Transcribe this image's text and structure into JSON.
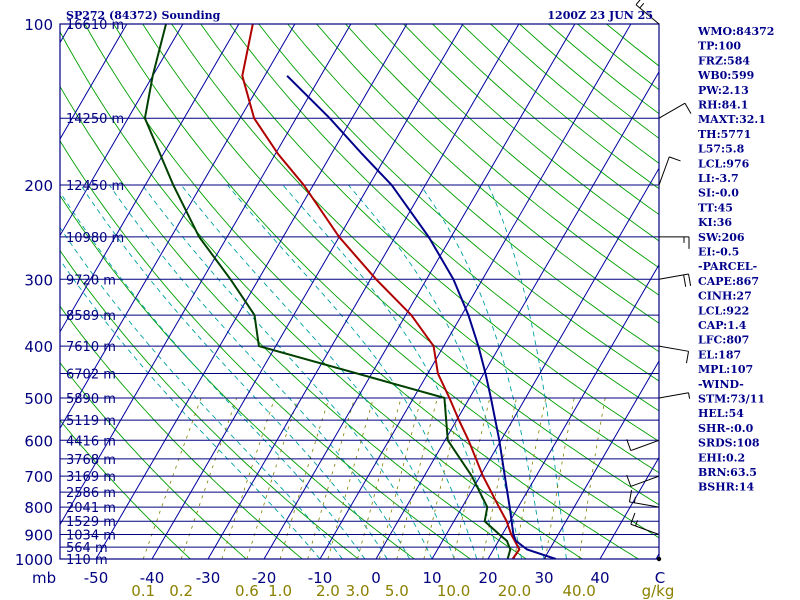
{
  "header": {
    "station": "SP272 (84372) Sounding",
    "time": "1200Z 23 JUN 25"
  },
  "stats": [
    "WMO:84372",
    "TP:100",
    "FRZ:584",
    "WB0:599",
    "PW:2.13",
    "RH:84.1",
    "MAXT:32.1",
    "TH:5771",
    "L57:5.8",
    "LCL:976",
    "LI:-3.7",
    "SI:-0.0",
    "TT:45",
    "KI:36",
    "SW:206",
    "EI:-0.5",
    "-PARCEL-",
    "CAPE:867",
    "CINH:27",
    "LCL:922",
    "CAP:1.4",
    "LFC:807",
    "EL:187",
    "MPL:107",
    "-WIND-",
    "STM:73/11",
    "HEL:54",
    "SHR-:0.0",
    "SRDS:108",
    "EHI:0.2",
    "BRN:63.5",
    "BSHR:14"
  ],
  "chart_data": {
    "type": "line",
    "title": "SP272 (84372) Sounding",
    "subtitle": "1200Z 23 JUN 25",
    "ylabel": "mb",
    "xlabel": "C",
    "mixing_ratio_unit": "g/kg",
    "pressure_ticks": [
      100,
      200,
      300,
      400,
      500,
      600,
      700,
      800,
      900,
      1000
    ],
    "pressure_tick_labels": [
      "100",
      "200",
      "300",
      "400",
      "500",
      "600",
      "700",
      "800",
      "900",
      "1000"
    ],
    "temperature_ticks": [
      -50,
      -40,
      -30,
      -20,
      -10,
      0,
      10,
      20,
      30,
      40
    ],
    "temperature_tick_labels": [
      "-50",
      "-40",
      "-30",
      "-20",
      "-10",
      "0",
      "10",
      "20",
      "30",
      "40"
    ],
    "mixing_ratio_ticks": [
      0.1,
      0.2,
      0.6,
      1.0,
      2.0,
      3.0,
      5.0,
      10.0,
      20.0,
      40.0
    ],
    "mixing_ratio_tick_labels": [
      "0.1",
      "0.2",
      "0.6",
      "1.0",
      "2.0",
      "3.0",
      "5.0",
      "10.0",
      "20.0",
      "40.0"
    ],
    "height_levels": [
      {
        "p": 100,
        "label": "16610 m"
      },
      {
        "p": 150,
        "label": "14250 m"
      },
      {
        "p": 200,
        "label": "12450 m"
      },
      {
        "p": 250,
        "label": "10980 m"
      },
      {
        "p": 300,
        "label": "9720 m"
      },
      {
        "p": 350,
        "label": "8589 m"
      },
      {
        "p": 400,
        "label": "7610 m"
      },
      {
        "p": 450,
        "label": "6702 m"
      },
      {
        "p": 500,
        "label": "5890 m"
      },
      {
        "p": 550,
        "label": "5119 m"
      },
      {
        "p": 600,
        "label": "4416 m"
      },
      {
        "p": 650,
        "label": "3768 m"
      },
      {
        "p": 700,
        "label": "3169 m"
      },
      {
        "p": 750,
        "label": "2586 m"
      },
      {
        "p": 800,
        "label": "2041 m"
      },
      {
        "p": 850,
        "label": "1529 m"
      },
      {
        "p": 900,
        "label": "1034 m"
      },
      {
        "p": 950,
        "label": "564 m"
      },
      {
        "p": 1000,
        "label": "110 m"
      }
    ],
    "series": [
      {
        "name": "temperature",
        "color": "#b00000",
        "points": [
          {
            "p": 1000,
            "t": 24.4
          },
          {
            "p": 960,
            "t": 24.6
          },
          {
            "p": 925,
            "t": 22.9
          },
          {
            "p": 900,
            "t": 21.6
          },
          {
            "p": 850,
            "t": 19.4
          },
          {
            "p": 800,
            "t": 16.6
          },
          {
            "p": 700,
            "t": 10.5
          },
          {
            "p": 600,
            "t": 4.2
          },
          {
            "p": 550,
            "t": 0.4
          },
          {
            "p": 500,
            "t": -3.6
          },
          {
            "p": 450,
            "t": -8.2
          },
          {
            "p": 400,
            "t": -11.8
          },
          {
            "p": 350,
            "t": -19.0
          },
          {
            "p": 300,
            "t": -29.0
          },
          {
            "p": 250,
            "t": -40.0
          },
          {
            "p": 200,
            "t": -51.7
          },
          {
            "p": 175,
            "t": -59.5
          },
          {
            "p": 150,
            "t": -67.5
          },
          {
            "p": 125,
            "t": -74.0
          },
          {
            "p": 100,
            "t": -77.5
          }
        ]
      },
      {
        "name": "dewpoint",
        "color": "#004000",
        "points": [
          {
            "p": 1000,
            "t": 23.5
          },
          {
            "p": 960,
            "t": 23.0
          },
          {
            "p": 925,
            "t": 21.5
          },
          {
            "p": 900,
            "t": 19.5
          },
          {
            "p": 850,
            "t": 15.5
          },
          {
            "p": 800,
            "t": 14.5
          },
          {
            "p": 700,
            "t": 8.5
          },
          {
            "p": 600,
            "t": 0.5
          },
          {
            "p": 500,
            "t": -4.5
          },
          {
            "p": 400,
            "t": -43.0
          },
          {
            "p": 350,
            "t": -47.0
          },
          {
            "p": 300,
            "t": -55.0
          },
          {
            "p": 250,
            "t": -65.0
          },
          {
            "p": 200,
            "t": -75.0
          },
          {
            "p": 150,
            "t": -87.0
          },
          {
            "p": 125,
            "t": -90.0
          },
          {
            "p": 100,
            "t": -93.0
          }
        ]
      },
      {
        "name": "parcel",
        "color": "#00008b",
        "points": [
          {
            "p": 1000,
            "t": 32.1
          },
          {
            "p": 960,
            "t": 26.0
          },
          {
            "p": 925,
            "t": 23.1
          },
          {
            "p": 900,
            "t": 22.0
          },
          {
            "p": 850,
            "t": 20.3
          },
          {
            "p": 800,
            "t": 18.5
          },
          {
            "p": 700,
            "t": 14.4
          },
          {
            "p": 600,
            "t": 9.7
          },
          {
            "p": 500,
            "t": 3.8
          },
          {
            "p": 450,
            "t": 0.3
          },
          {
            "p": 400,
            "t": -3.8
          },
          {
            "p": 350,
            "t": -8.8
          },
          {
            "p": 300,
            "t": -15.2
          },
          {
            "p": 250,
            "t": -24.0
          },
          {
            "p": 200,
            "t": -36.0
          },
          {
            "p": 175,
            "t": -44.5
          },
          {
            "p": 150,
            "t": -54.0
          },
          {
            "p": 125,
            "t": -66.0
          }
        ]
      }
    ],
    "wind_barbs": [
      {
        "p": 1000,
        "dir": 0,
        "spd": 0
      },
      {
        "p": 900,
        "dir": 290,
        "spd": 15
      },
      {
        "p": 800,
        "dir": 280,
        "spd": 15
      },
      {
        "p": 700,
        "dir": 250,
        "spd": 10
      },
      {
        "p": 600,
        "dir": 250,
        "spd": 10
      },
      {
        "p": 500,
        "dir": 80,
        "spd": 5
      },
      {
        "p": 400,
        "dir": 100,
        "spd": 10
      },
      {
        "p": 300,
        "dir": 80,
        "spd": 20
      },
      {
        "p": 250,
        "dir": 90,
        "spd": 15
      },
      {
        "p": 200,
        "dir": 20,
        "spd": 10
      },
      {
        "p": 150,
        "dir": 60,
        "spd": 10
      },
      {
        "p": 100,
        "dir": 310,
        "spd": 15
      }
    ],
    "grid": true,
    "background_lines": [
      "isobars",
      "isotherms",
      "dry adiabats",
      "moist adiabats",
      "mixing ratio"
    ],
    "colors": {
      "frame": "#000080",
      "isotherm": "#0000a0",
      "dry_adiabat": "#00a000",
      "moist_adiabat": "#00a0a0",
      "mixing_ratio": "#808000",
      "text": "#00008b"
    }
  }
}
